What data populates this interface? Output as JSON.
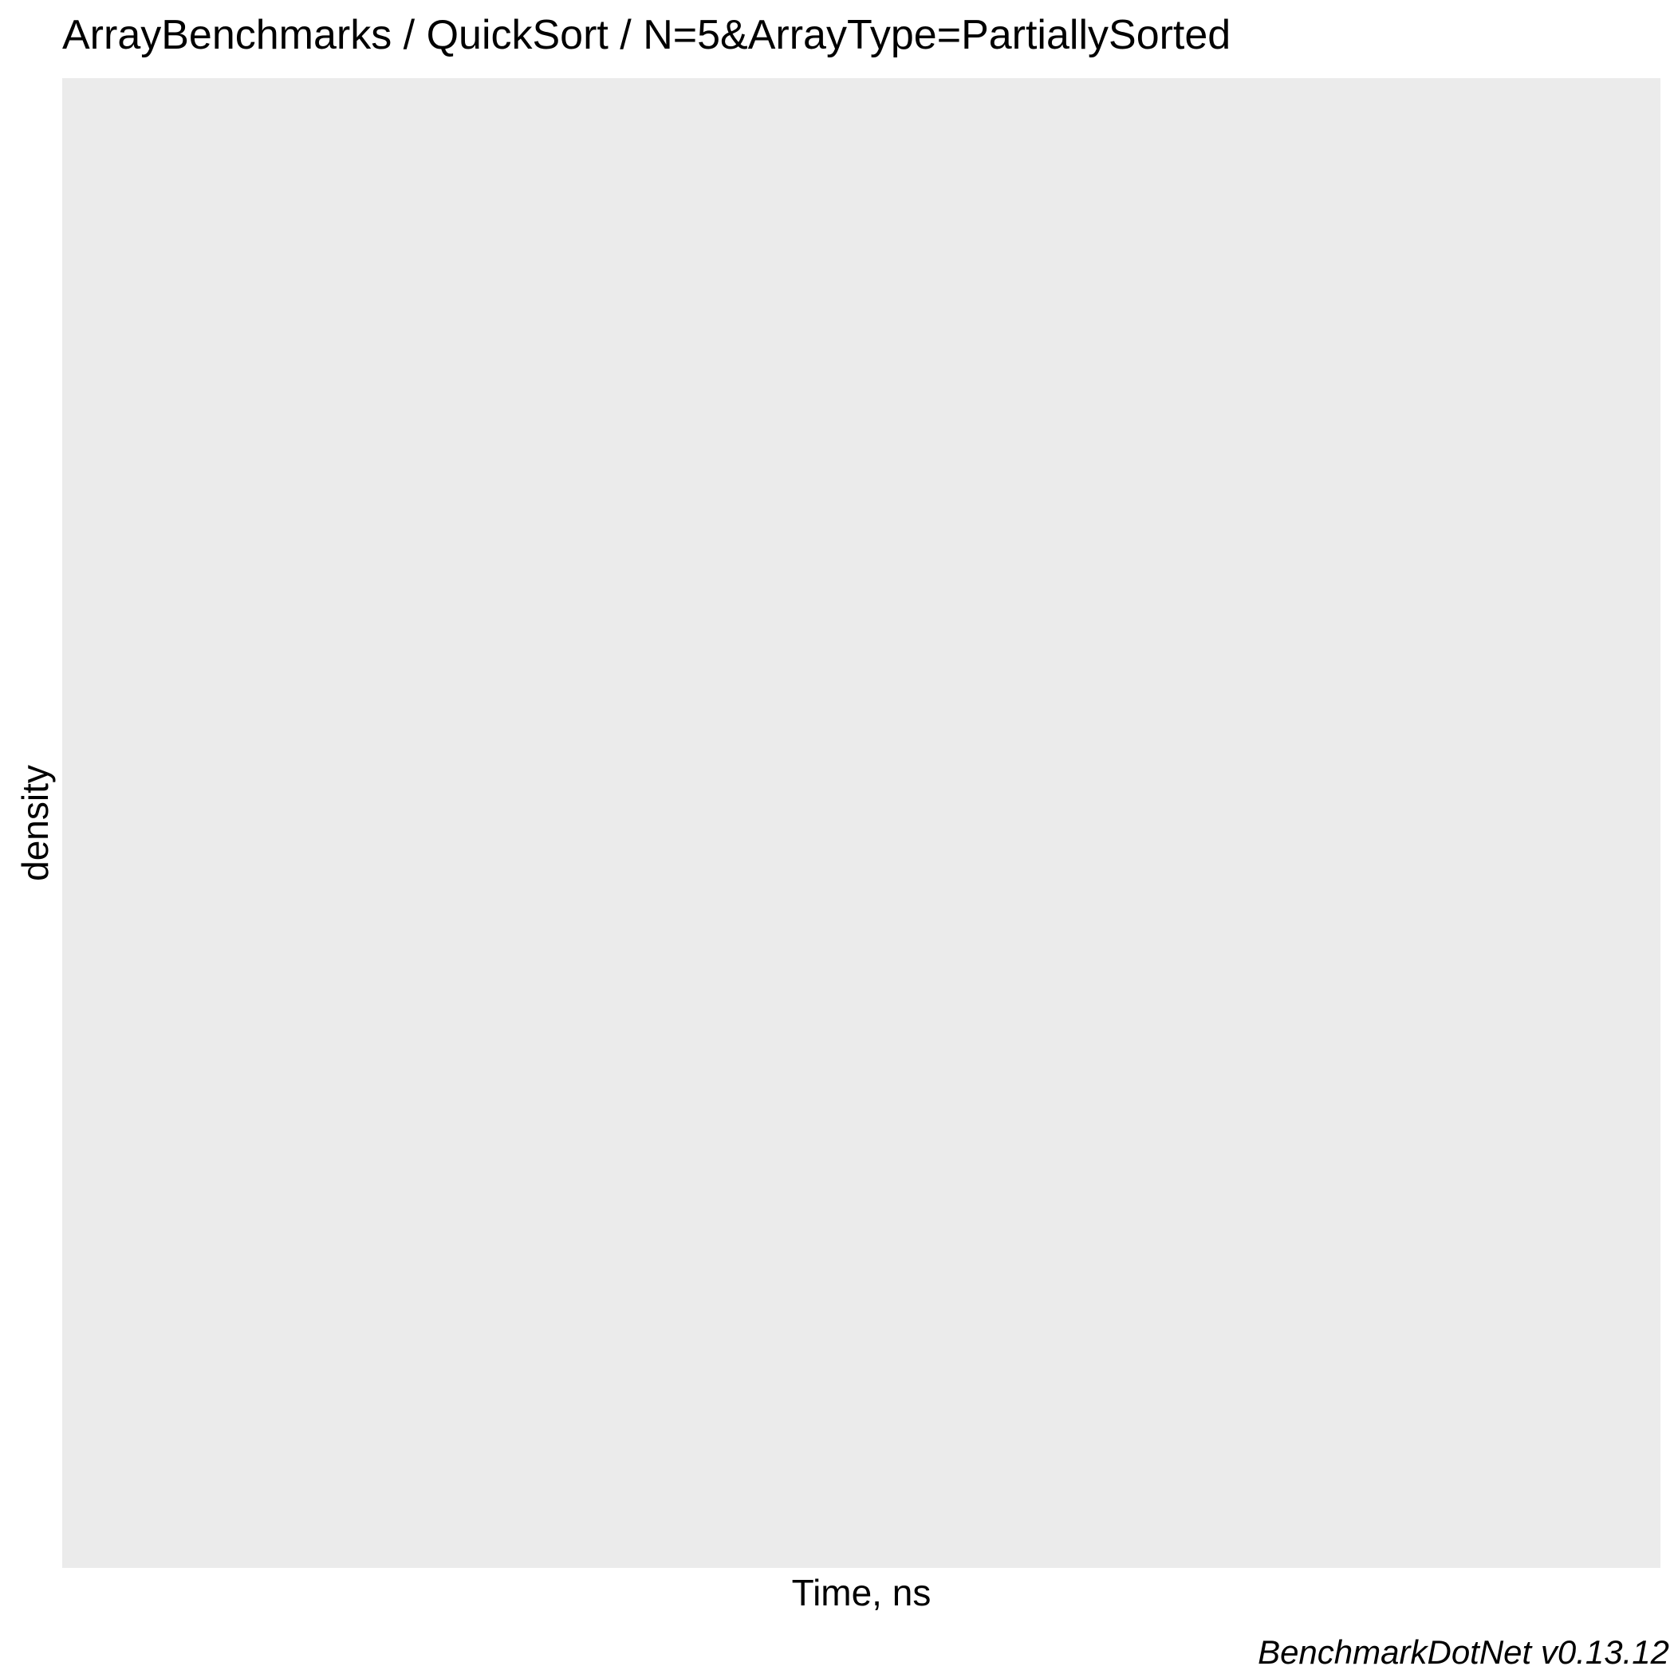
{
  "chart_data": {
    "type": "area",
    "title": "ArrayBenchmarks / QuickSort / N=5&ArrayType=PartiallySorted",
    "xlabel": "Time, ns",
    "ylabel": "density",
    "caption": "BenchmarkDotNet v0.13.12",
    "series": [],
    "x_ticks": [],
    "y_ticks": [],
    "grid": false,
    "legend": "none",
    "colors": {
      "panel_background": "#EBEBEB",
      "background": "#FFFFFF",
      "text": "#000000"
    }
  }
}
